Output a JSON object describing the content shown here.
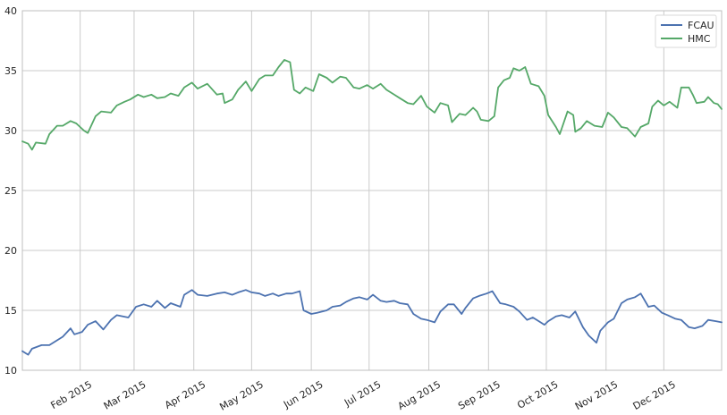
{
  "chart_data": {
    "type": "line",
    "title": "",
    "xlabel": "",
    "ylabel": "",
    "x_range": [
      "2015-01-02",
      "2015-12-31"
    ],
    "ylim": [
      10,
      40
    ],
    "y_ticks": [
      10,
      15,
      20,
      25,
      30,
      35,
      40
    ],
    "x_ticks": [
      {
        "date": "2015-02-01",
        "label": "Feb 2015"
      },
      {
        "date": "2015-03-01",
        "label": "Mar 2015"
      },
      {
        "date": "2015-04-01",
        "label": "Apr 2015"
      },
      {
        "date": "2015-05-01",
        "label": "May 2015"
      },
      {
        "date": "2015-06-01",
        "label": "Jun 2015"
      },
      {
        "date": "2015-07-01",
        "label": "Jul 2015"
      },
      {
        "date": "2015-08-01",
        "label": "Aug 2015"
      },
      {
        "date": "2015-09-01",
        "label": "Sep 2015"
      },
      {
        "date": "2015-10-01",
        "label": "Oct 2015"
      },
      {
        "date": "2015-11-01",
        "label": "Nov 2015"
      },
      {
        "date": "2015-12-01",
        "label": "Dec 2015"
      }
    ],
    "grid": true,
    "legend_position": "top-right",
    "series": [
      {
        "name": "FCAU",
        "color": "#4c72b0",
        "points": [
          [
            "2015-01-02",
            11.6
          ],
          [
            "2015-01-05",
            11.3
          ],
          [
            "2015-01-07",
            11.8
          ],
          [
            "2015-01-12",
            12.1
          ],
          [
            "2015-01-16",
            12.1
          ],
          [
            "2015-01-20",
            12.5
          ],
          [
            "2015-01-23",
            12.8
          ],
          [
            "2015-01-27",
            13.5
          ],
          [
            "2015-01-29",
            13.0
          ],
          [
            "2015-02-02",
            13.2
          ],
          [
            "2015-02-05",
            13.8
          ],
          [
            "2015-02-09",
            14.1
          ],
          [
            "2015-02-13",
            13.4
          ],
          [
            "2015-02-17",
            14.2
          ],
          [
            "2015-02-20",
            14.6
          ],
          [
            "2015-02-26",
            14.4
          ],
          [
            "2015-03-02",
            15.3
          ],
          [
            "2015-03-06",
            15.5
          ],
          [
            "2015-03-10",
            15.3
          ],
          [
            "2015-03-13",
            15.8
          ],
          [
            "2015-03-17",
            15.2
          ],
          [
            "2015-03-20",
            15.6
          ],
          [
            "2015-03-25",
            15.3
          ],
          [
            "2015-03-27",
            16.3
          ],
          [
            "2015-03-31",
            16.7
          ],
          [
            "2015-04-03",
            16.3
          ],
          [
            "2015-04-08",
            16.2
          ],
          [
            "2015-04-13",
            16.4
          ],
          [
            "2015-04-17",
            16.5
          ],
          [
            "2015-04-21",
            16.3
          ],
          [
            "2015-04-24",
            16.5
          ],
          [
            "2015-04-28",
            16.7
          ],
          [
            "2015-05-01",
            16.5
          ],
          [
            "2015-05-05",
            16.4
          ],
          [
            "2015-05-08",
            16.2
          ],
          [
            "2015-05-12",
            16.4
          ],
          [
            "2015-05-15",
            16.2
          ],
          [
            "2015-05-19",
            16.4
          ],
          [
            "2015-05-22",
            16.4
          ],
          [
            "2015-05-26",
            16.6
          ],
          [
            "2015-05-28",
            15.0
          ],
          [
            "2015-06-01",
            14.7
          ],
          [
            "2015-06-04",
            14.8
          ],
          [
            "2015-06-09",
            15.0
          ],
          [
            "2015-06-12",
            15.3
          ],
          [
            "2015-06-16",
            15.4
          ],
          [
            "2015-06-19",
            15.7
          ],
          [
            "2015-06-23",
            16.0
          ],
          [
            "2015-06-26",
            16.1
          ],
          [
            "2015-06-30",
            15.9
          ],
          [
            "2015-07-03",
            16.3
          ],
          [
            "2015-07-07",
            15.8
          ],
          [
            "2015-07-10",
            15.7
          ],
          [
            "2015-07-14",
            15.8
          ],
          [
            "2015-07-17",
            15.6
          ],
          [
            "2015-07-21",
            15.5
          ],
          [
            "2015-07-24",
            14.7
          ],
          [
            "2015-07-28",
            14.3
          ],
          [
            "2015-07-31",
            14.2
          ],
          [
            "2015-08-04",
            14.0
          ],
          [
            "2015-08-07",
            14.9
          ],
          [
            "2015-08-11",
            15.5
          ],
          [
            "2015-08-14",
            15.5
          ],
          [
            "2015-08-18",
            14.7
          ],
          [
            "2015-08-20",
            15.2
          ],
          [
            "2015-08-24",
            16.0
          ],
          [
            "2015-08-27",
            16.2
          ],
          [
            "2015-08-31",
            16.4
          ],
          [
            "2015-09-03",
            16.6
          ],
          [
            "2015-09-07",
            15.6
          ],
          [
            "2015-09-10",
            15.5
          ],
          [
            "2015-09-14",
            15.3
          ],
          [
            "2015-09-17",
            14.9
          ],
          [
            "2015-09-21",
            14.2
          ],
          [
            "2015-09-24",
            14.4
          ],
          [
            "2015-09-28",
            14.0
          ],
          [
            "2015-09-30",
            13.8
          ],
          [
            "2015-10-02",
            14.1
          ],
          [
            "2015-10-06",
            14.5
          ],
          [
            "2015-10-09",
            14.6
          ],
          [
            "2015-10-13",
            14.4
          ],
          [
            "2015-10-16",
            14.9
          ],
          [
            "2015-10-20",
            13.6
          ],
          [
            "2015-10-23",
            12.9
          ],
          [
            "2015-10-27",
            12.3
          ],
          [
            "2015-10-29",
            13.3
          ],
          [
            "2015-11-02",
            14.0
          ],
          [
            "2015-11-05",
            14.3
          ],
          [
            "2015-11-09",
            15.6
          ],
          [
            "2015-11-12",
            15.9
          ],
          [
            "2015-11-16",
            16.1
          ],
          [
            "2015-11-19",
            16.4
          ],
          [
            "2015-11-23",
            15.3
          ],
          [
            "2015-11-26",
            15.4
          ],
          [
            "2015-11-30",
            14.8
          ],
          [
            "2015-12-03",
            14.6
          ],
          [
            "2015-12-07",
            14.3
          ],
          [
            "2015-12-10",
            14.2
          ],
          [
            "2015-12-14",
            13.6
          ],
          [
            "2015-12-17",
            13.5
          ],
          [
            "2015-12-21",
            13.7
          ],
          [
            "2015-12-24",
            14.2
          ],
          [
            "2015-12-28",
            14.1
          ],
          [
            "2015-12-31",
            14.0
          ]
        ]
      },
      {
        "name": "HMC",
        "color": "#55a868",
        "points": [
          [
            "2015-01-02",
            29.1
          ],
          [
            "2015-01-05",
            28.9
          ],
          [
            "2015-01-07",
            28.4
          ],
          [
            "2015-01-09",
            29.0
          ],
          [
            "2015-01-14",
            28.9
          ],
          [
            "2015-01-16",
            29.7
          ],
          [
            "2015-01-20",
            30.4
          ],
          [
            "2015-01-23",
            30.4
          ],
          [
            "2015-01-27",
            30.8
          ],
          [
            "2015-01-30",
            30.6
          ],
          [
            "2015-02-03",
            30.0
          ],
          [
            "2015-02-05",
            29.8
          ],
          [
            "2015-02-09",
            31.2
          ],
          [
            "2015-02-12",
            31.6
          ],
          [
            "2015-02-17",
            31.5
          ],
          [
            "2015-02-20",
            32.1
          ],
          [
            "2015-02-24",
            32.4
          ],
          [
            "2015-02-27",
            32.6
          ],
          [
            "2015-03-03",
            33.0
          ],
          [
            "2015-03-06",
            32.8
          ],
          [
            "2015-03-10",
            33.0
          ],
          [
            "2015-03-13",
            32.7
          ],
          [
            "2015-03-17",
            32.8
          ],
          [
            "2015-03-20",
            33.1
          ],
          [
            "2015-03-24",
            32.9
          ],
          [
            "2015-03-27",
            33.6
          ],
          [
            "2015-03-31",
            34.0
          ],
          [
            "2015-04-03",
            33.5
          ],
          [
            "2015-04-08",
            33.9
          ],
          [
            "2015-04-13",
            33.0
          ],
          [
            "2015-04-16",
            33.1
          ],
          [
            "2015-04-17",
            32.3
          ],
          [
            "2015-04-21",
            32.6
          ],
          [
            "2015-04-24",
            33.4
          ],
          [
            "2015-04-28",
            34.1
          ],
          [
            "2015-05-01",
            33.3
          ],
          [
            "2015-05-05",
            34.3
          ],
          [
            "2015-05-08",
            34.6
          ],
          [
            "2015-05-12",
            34.6
          ],
          [
            "2015-05-15",
            35.3
          ],
          [
            "2015-05-18",
            35.9
          ],
          [
            "2015-05-21",
            35.7
          ],
          [
            "2015-05-23",
            33.4
          ],
          [
            "2015-05-26",
            33.1
          ],
          [
            "2015-05-29",
            33.6
          ],
          [
            "2015-06-02",
            33.3
          ],
          [
            "2015-06-05",
            34.7
          ],
          [
            "2015-06-09",
            34.4
          ],
          [
            "2015-06-12",
            34.0
          ],
          [
            "2015-06-16",
            34.5
          ],
          [
            "2015-06-19",
            34.4
          ],
          [
            "2015-06-23",
            33.6
          ],
          [
            "2015-06-26",
            33.5
          ],
          [
            "2015-06-30",
            33.8
          ],
          [
            "2015-07-03",
            33.5
          ],
          [
            "2015-07-07",
            33.9
          ],
          [
            "2015-07-10",
            33.4
          ],
          [
            "2015-07-14",
            33.0
          ],
          [
            "2015-07-17",
            32.7
          ],
          [
            "2015-07-21",
            32.3
          ],
          [
            "2015-07-24",
            32.2
          ],
          [
            "2015-07-28",
            32.9
          ],
          [
            "2015-07-31",
            32.0
          ],
          [
            "2015-08-04",
            31.5
          ],
          [
            "2015-08-07",
            32.3
          ],
          [
            "2015-08-11",
            32.1
          ],
          [
            "2015-08-13",
            30.7
          ],
          [
            "2015-08-17",
            31.4
          ],
          [
            "2015-08-20",
            31.3
          ],
          [
            "2015-08-24",
            31.9
          ],
          [
            "2015-08-26",
            31.6
          ],
          [
            "2015-08-28",
            30.9
          ],
          [
            "2015-09-01",
            30.8
          ],
          [
            "2015-09-04",
            31.2
          ],
          [
            "2015-09-06",
            33.6
          ],
          [
            "2015-09-09",
            34.2
          ],
          [
            "2015-09-12",
            34.4
          ],
          [
            "2015-09-14",
            35.2
          ],
          [
            "2015-09-17",
            35.0
          ],
          [
            "2015-09-20",
            35.3
          ],
          [
            "2015-09-23",
            33.9
          ],
          [
            "2015-09-27",
            33.7
          ],
          [
            "2015-09-30",
            32.9
          ],
          [
            "2015-10-02",
            31.3
          ],
          [
            "2015-10-06",
            30.3
          ],
          [
            "2015-10-08",
            29.7
          ],
          [
            "2015-10-12",
            31.6
          ],
          [
            "2015-10-15",
            31.3
          ],
          [
            "2015-10-16",
            29.9
          ],
          [
            "2015-10-19",
            30.2
          ],
          [
            "2015-10-22",
            30.8
          ],
          [
            "2015-10-26",
            30.4
          ],
          [
            "2015-10-30",
            30.3
          ],
          [
            "2015-11-02",
            31.5
          ],
          [
            "2015-11-05",
            31.1
          ],
          [
            "2015-11-09",
            30.3
          ],
          [
            "2015-11-12",
            30.2
          ],
          [
            "2015-11-16",
            29.5
          ],
          [
            "2015-11-19",
            30.3
          ],
          [
            "2015-11-23",
            30.6
          ],
          [
            "2015-11-25",
            32.0
          ],
          [
            "2015-11-28",
            32.5
          ],
          [
            "2015-12-01",
            32.1
          ],
          [
            "2015-12-04",
            32.4
          ],
          [
            "2015-12-08",
            31.9
          ],
          [
            "2015-12-10",
            33.6
          ],
          [
            "2015-12-14",
            33.6
          ],
          [
            "2015-12-16",
            33.0
          ],
          [
            "2015-12-18",
            32.3
          ],
          [
            "2015-12-22",
            32.4
          ],
          [
            "2015-12-24",
            32.8
          ],
          [
            "2015-12-27",
            32.3
          ],
          [
            "2015-12-29",
            32.2
          ],
          [
            "2015-12-31",
            31.8
          ]
        ]
      }
    ]
  }
}
